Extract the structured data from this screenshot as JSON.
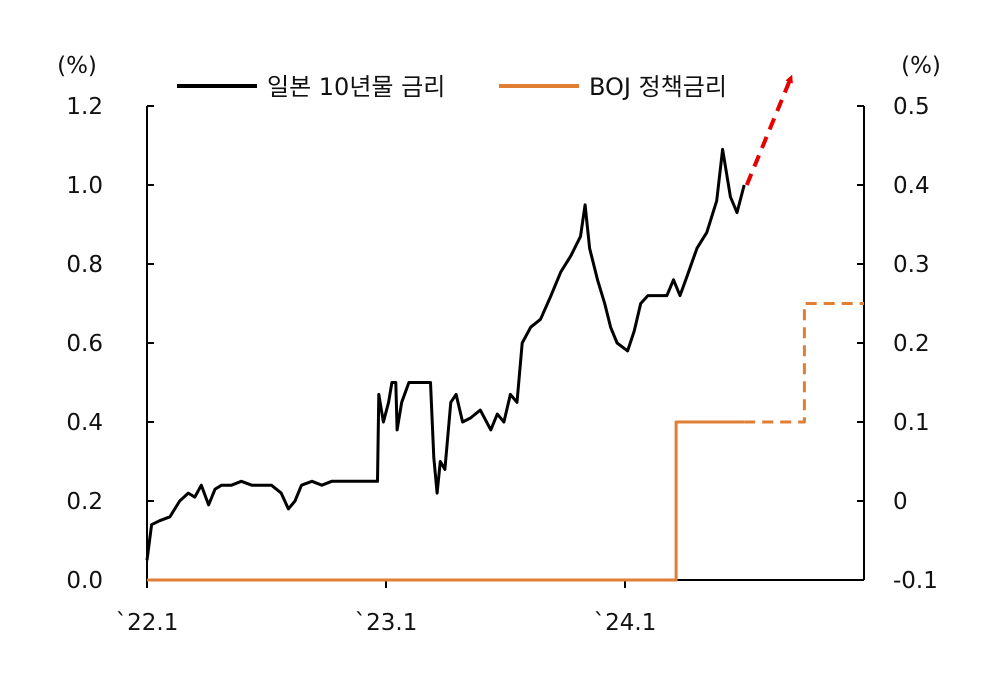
{
  "chart_data": {
    "type": "line",
    "y_left": {
      "unit": "(%)",
      "range": [
        0.0,
        1.2
      ],
      "ticks": [
        "0.0",
        "0.2",
        "0.4",
        "0.6",
        "0.8",
        "1.0",
        "1.2"
      ]
    },
    "y_right": {
      "unit": "(%)",
      "range": [
        -0.1,
        0.5
      ],
      "ticks": [
        "-0.1",
        "0",
        "0.1",
        "0.2",
        "0.3",
        "0.4",
        "0.5"
      ]
    },
    "x_ticks": [
      {
        "label": "`22.1",
        "date": "2022-01"
      },
      {
        "label": "`23.1",
        "date": "2023-01"
      },
      {
        "label": "`24.1",
        "date": "2024-01"
      }
    ],
    "x_range": [
      "2022-01-01",
      "2024-12-31"
    ],
    "legend_position": "top",
    "series": [
      {
        "name": "일본 10년물 금리",
        "axis": "left",
        "color": "#000000",
        "style": "solid",
        "points": [
          [
            "2022-01-01",
            0.05
          ],
          [
            "2022-01-08",
            0.14
          ],
          [
            "2022-01-20",
            0.15
          ],
          [
            "2022-02-05",
            0.16
          ],
          [
            "2022-02-20",
            0.2
          ],
          [
            "2022-03-05",
            0.22
          ],
          [
            "2022-03-15",
            0.21
          ],
          [
            "2022-03-25",
            0.24
          ],
          [
            "2022-04-05",
            0.19
          ],
          [
            "2022-04-15",
            0.23
          ],
          [
            "2022-04-25",
            0.24
          ],
          [
            "2022-05-10",
            0.24
          ],
          [
            "2022-05-25",
            0.25
          ],
          [
            "2022-06-10",
            0.24
          ],
          [
            "2022-06-25",
            0.24
          ],
          [
            "2022-07-10",
            0.24
          ],
          [
            "2022-07-25",
            0.22
          ],
          [
            "2022-08-05",
            0.18
          ],
          [
            "2022-08-15",
            0.2
          ],
          [
            "2022-08-25",
            0.24
          ],
          [
            "2022-09-10",
            0.25
          ],
          [
            "2022-09-25",
            0.24
          ],
          [
            "2022-10-10",
            0.25
          ],
          [
            "2022-10-25",
            0.25
          ],
          [
            "2022-11-10",
            0.25
          ],
          [
            "2022-11-25",
            0.25
          ],
          [
            "2022-12-10",
            0.25
          ],
          [
            "2022-12-19",
            0.25
          ],
          [
            "2022-12-21",
            0.47
          ],
          [
            "2022-12-28",
            0.4
          ],
          [
            "2023-01-05",
            0.45
          ],
          [
            "2023-01-10",
            0.5
          ],
          [
            "2023-01-16",
            0.5
          ],
          [
            "2023-01-18",
            0.38
          ],
          [
            "2023-01-25",
            0.45
          ],
          [
            "2023-02-05",
            0.5
          ],
          [
            "2023-02-20",
            0.5
          ],
          [
            "2023-03-01",
            0.5
          ],
          [
            "2023-03-10",
            0.5
          ],
          [
            "2023-03-15",
            0.31
          ],
          [
            "2023-03-20",
            0.22
          ],
          [
            "2023-03-25",
            0.3
          ],
          [
            "2023-04-01",
            0.28
          ],
          [
            "2023-04-10",
            0.45
          ],
          [
            "2023-04-18",
            0.47
          ],
          [
            "2023-04-28",
            0.4
          ],
          [
            "2023-05-10",
            0.41
          ],
          [
            "2023-05-25",
            0.43
          ],
          [
            "2023-06-10",
            0.38
          ],
          [
            "2023-06-20",
            0.42
          ],
          [
            "2023-06-30",
            0.4
          ],
          [
            "2023-07-10",
            0.47
          ],
          [
            "2023-07-20",
            0.45
          ],
          [
            "2023-07-28",
            0.6
          ],
          [
            "2023-08-10",
            0.64
          ],
          [
            "2023-08-25",
            0.66
          ],
          [
            "2023-09-10",
            0.72
          ],
          [
            "2023-09-25",
            0.78
          ],
          [
            "2023-10-10",
            0.82
          ],
          [
            "2023-10-25",
            0.87
          ],
          [
            "2023-11-01",
            0.95
          ],
          [
            "2023-11-08",
            0.84
          ],
          [
            "2023-11-20",
            0.76
          ],
          [
            "2023-12-01",
            0.7
          ],
          [
            "2023-12-10",
            0.64
          ],
          [
            "2023-12-20",
            0.6
          ],
          [
            "2024-01-05",
            0.58
          ],
          [
            "2024-01-15",
            0.63
          ],
          [
            "2024-01-25",
            0.7
          ],
          [
            "2024-02-05",
            0.72
          ],
          [
            "2024-02-20",
            0.72
          ],
          [
            "2024-03-05",
            0.72
          ],
          [
            "2024-03-15",
            0.76
          ],
          [
            "2024-03-25",
            0.72
          ],
          [
            "2024-04-05",
            0.77
          ],
          [
            "2024-04-20",
            0.84
          ],
          [
            "2024-05-05",
            0.88
          ],
          [
            "2024-05-20",
            0.96
          ],
          [
            "2024-05-29",
            1.09
          ],
          [
            "2024-06-10",
            0.97
          ],
          [
            "2024-06-20",
            0.93
          ],
          [
            "2024-07-01",
            1.0
          ]
        ]
      },
      {
        "name": "BOJ 정책금리",
        "axis": "right",
        "color": "#E07E34",
        "style": "solid",
        "points": [
          [
            "2022-01-01",
            -0.1
          ],
          [
            "2024-03-19",
            -0.1
          ],
          [
            "2024-03-19",
            0.1
          ],
          [
            "2024-07-01",
            0.1
          ]
        ]
      },
      {
        "name": "BOJ 정책금리",
        "axis": "right",
        "color": "#E07E34",
        "style": "dashed",
        "points": [
          [
            "2024-07-01",
            0.1
          ],
          [
            "2024-10-01",
            0.1
          ],
          [
            "2024-10-01",
            0.25
          ],
          [
            "2024-12-31",
            0.25
          ]
        ]
      }
    ],
    "annotation": {
      "type": "arrow",
      "color": "#E60000",
      "style": "dashed",
      "from": [
        "2024-07-05",
        1.0
      ],
      "to": [
        "2024-09-10",
        1.27
      ],
      "axis": "left"
    }
  }
}
